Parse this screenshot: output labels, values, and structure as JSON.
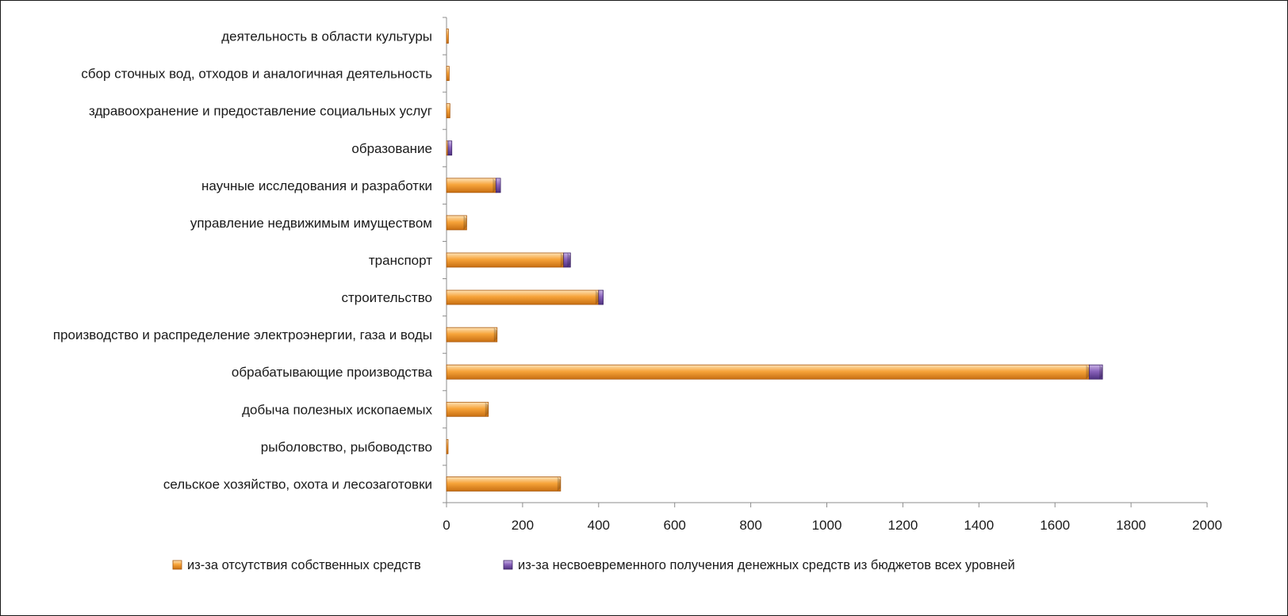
{
  "chart_data": {
    "type": "bar",
    "orientation": "horizontal",
    "stacked": true,
    "categories": [
      "сельское хозяйство, охота и лесозаготовки",
      "рыболовство, рыбоводство",
      "добыча полезных ископаемых",
      "обрабатывающие производства",
      "производство и распределение электроэнергии,  газа и воды",
      "строительство",
      "транспорт",
      "управление недвижимым имуществом",
      "научные исследования и разработки",
      "образование",
      "здравоохранение и предоставление социальных услуг",
      "сбор сточных вод, отходов и аналогичная деятельность",
      "деятельность в области культуры"
    ],
    "series": [
      {
        "name": "из-за отсутствия собственных средств",
        "color": "#f39c2b",
        "values": [
          300,
          4,
          110,
          1690,
          133,
          400,
          308,
          53,
          130,
          4,
          9,
          7,
          5
        ]
      },
      {
        "name": "из-за несвоевременного получения денежных средств из бюджетов всех уровней",
        "color": "#7b56a8",
        "values": [
          0,
          0,
          0,
          35,
          0,
          12,
          18,
          0,
          12,
          10,
          0,
          0,
          0
        ]
      }
    ],
    "xlim": [
      0,
      2000
    ],
    "xticks": [
      "0",
      "200",
      "400",
      "600",
      "800",
      "1000",
      "1200",
      "1400",
      "1600",
      "1800",
      "2000"
    ],
    "grid": false,
    "legend_position": "bottom",
    "title": "",
    "xlabel": "",
    "ylabel": ""
  }
}
